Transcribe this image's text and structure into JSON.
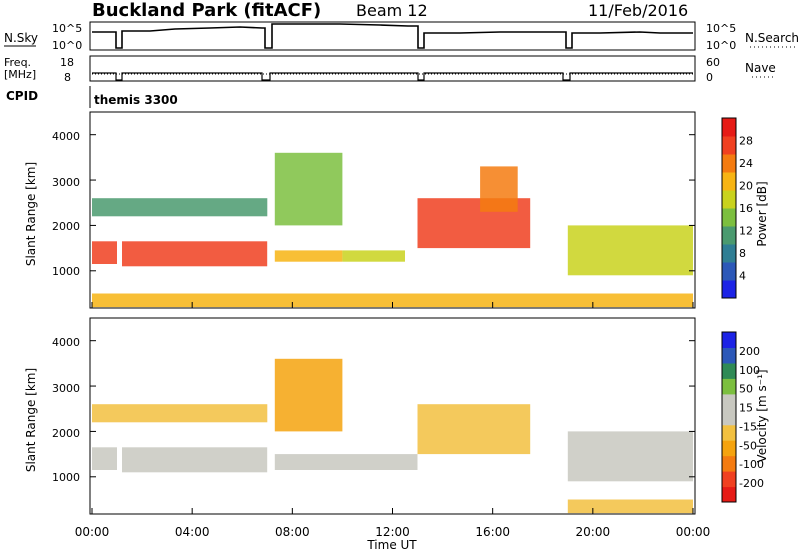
{
  "header": {
    "title": "Buckland Park (fitACF)",
    "beam": "Beam 12",
    "date": "11/Feb/2016"
  },
  "noise_panel": {
    "left_label": "N.Sky",
    "left_ticks": [
      "10^5",
      "10^0"
    ],
    "right_label": "N.Search",
    "right_ticks": [
      "10^5",
      "10^0"
    ]
  },
  "freq_panel": {
    "left_label_top": "Freq.",
    "left_label_bottom": "[MHz]",
    "left_ticks": [
      "18",
      "8"
    ],
    "right_label": "Nave",
    "right_ticks": [
      "60",
      "0"
    ]
  },
  "cpid": {
    "label": "CPID",
    "value": "themis 3300"
  },
  "time_axis": {
    "label": "Time UT",
    "ticks": [
      "00:00",
      "04:00",
      "08:00",
      "12:00",
      "16:00",
      "20:00",
      "00:00"
    ]
  },
  "colors": {
    "power_scale": [
      "#1c23e5",
      "#2c58b8",
      "#2f7e94",
      "#4a9a6f",
      "#7cbf3f",
      "#c9d21d",
      "#f7b413",
      "#f47b10",
      "#f04020",
      "#e61b16"
    ],
    "velocity_scale": [
      "#e61b16",
      "#f04020",
      "#f47b10",
      "#f5a30e",
      "#f2c040",
      "#c8c8c0",
      "#c8c8c0",
      "#7cbf3f",
      "#2f8a55",
      "#2c58b8",
      "#1c23e5"
    ]
  },
  "chart_data": [
    {
      "type": "heatmap",
      "panel": "power",
      "xlabel": "Time UT",
      "ylabel": "Slant Range [km]",
      "ylim": [
        180,
        4500
      ],
      "y_ticks": [
        "1000",
        "2000",
        "3000",
        "4000"
      ],
      "colorbar_label": "Power [dB]",
      "colorbar_ticks": [
        "28",
        "24",
        "20",
        "16",
        "12",
        "8",
        "4"
      ],
      "colorbar_range": [
        0,
        30
      ],
      "regions": [
        {
          "t0": 0.0,
          "t1": 1.0,
          "r0": 1150,
          "r1": 1650,
          "value": 24
        },
        {
          "t0": 1.2,
          "t1": 7.0,
          "r0": 1100,
          "r1": 1650,
          "value": 26
        },
        {
          "t0": 7.3,
          "t1": 10.0,
          "r0": 1200,
          "r1": 1450,
          "value": 20
        },
        {
          "t0": 10.0,
          "t1": 12.5,
          "r0": 1200,
          "r1": 1450,
          "value": 16
        },
        {
          "t0": 13.0,
          "t1": 17.5,
          "r0": 1500,
          "r1": 2600,
          "value": 26
        },
        {
          "t0": 15.5,
          "t1": 17.0,
          "r0": 2300,
          "r1": 3300,
          "value": 22
        },
        {
          "t0": 19.0,
          "t1": 24.0,
          "r0": 900,
          "r1": 2000,
          "value": 16
        },
        {
          "t0": 0.0,
          "t1": 24.0,
          "r0": 200,
          "r1": 500,
          "value": 18
        },
        {
          "t0": 0.0,
          "t1": 7.0,
          "r0": 2200,
          "r1": 2600,
          "value": 10
        },
        {
          "t0": 7.3,
          "t1": 10.0,
          "r0": 2000,
          "r1": 3600,
          "value": 12
        }
      ]
    },
    {
      "type": "heatmap",
      "panel": "velocity",
      "xlabel": "Time UT",
      "ylabel": "Slant Range [km]",
      "ylim": [
        180,
        4500
      ],
      "y_ticks": [
        "1000",
        "2000",
        "3000",
        "4000"
      ],
      "colorbar_label": "Velocity [m s⁻¹]",
      "colorbar_ticks": [
        "200",
        "100",
        "50",
        "15",
        "-15",
        "-50",
        "-100",
        "-200"
      ],
      "colorbar_range": [
        -250,
        250
      ],
      "regions": [
        {
          "t0": 0.0,
          "t1": 1.0,
          "r0": 1150,
          "r1": 1650,
          "value": 0
        },
        {
          "t0": 1.2,
          "t1": 7.0,
          "r0": 1100,
          "r1": 1650,
          "value": 0
        },
        {
          "t0": 7.3,
          "t1": 13.0,
          "r0": 1150,
          "r1": 1500,
          "value": 0
        },
        {
          "t0": 13.0,
          "t1": 17.5,
          "r0": 1500,
          "r1": 2600,
          "value": -30
        },
        {
          "t0": 19.0,
          "t1": 24.0,
          "r0": 900,
          "r1": 2000,
          "value": 0
        },
        {
          "t0": 19.0,
          "t1": 24.0,
          "r0": 200,
          "r1": 500,
          "value": -60
        },
        {
          "t0": 0.0,
          "t1": 7.0,
          "r0": 2200,
          "r1": 2600,
          "value": -60
        },
        {
          "t0": 7.3,
          "t1": 10.0,
          "r0": 2000,
          "r1": 3600,
          "value": -80
        }
      ]
    }
  ]
}
